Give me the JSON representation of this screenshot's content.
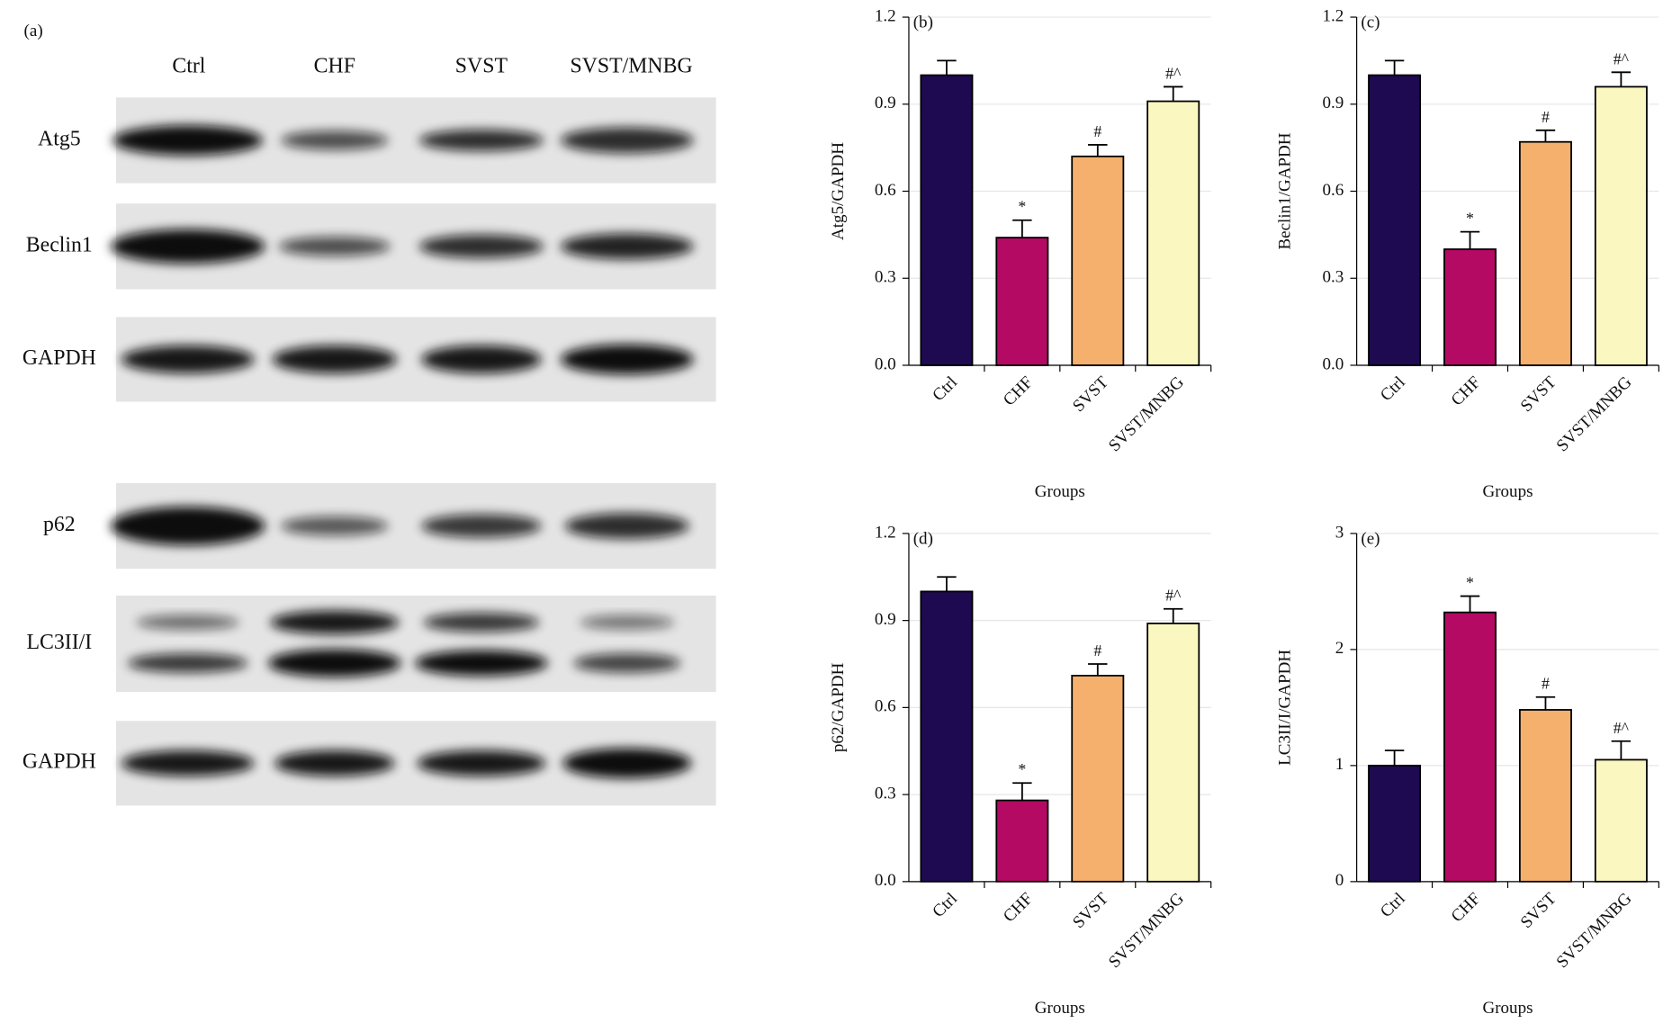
{
  "blot": {
    "label": "(a)",
    "lanes": [
      "Ctrl",
      "CHF",
      "SVST",
      "SVST/MNBG"
    ],
    "rows": [
      "Atg5",
      "Beclin1",
      "GAPDH",
      "p62",
      "LC3II/I",
      "GAPDH"
    ]
  },
  "chart_data": [
    {
      "type": "bar",
      "title": "(b)",
      "ylabel": "Atg5/GAPDH",
      "xlabel": "Groups",
      "categories": [
        "Ctrl",
        "CHF",
        "SVST",
        "SVST/MNBG"
      ],
      "values": [
        1.0,
        0.44,
        0.72,
        0.91
      ],
      "errors": [
        0.05,
        0.06,
        0.04,
        0.05
      ],
      "annotations": [
        null,
        "*",
        "#",
        "#^"
      ],
      "colors": [
        "#1e0a50",
        "#b40a64",
        "#f4b06c",
        "#fbf7c0"
      ],
      "ylim": [
        0,
        1.2
      ],
      "yticks": [
        {
          "value": 0,
          "label": "0.0"
        },
        0.3,
        0.6,
        0.9,
        1.2
      ],
      "grid": true
    },
    {
      "type": "bar",
      "title": "(c)",
      "ylabel": "Beclin1/GAPDH",
      "xlabel": "Groups",
      "categories": [
        "Ctrl",
        "CHF",
        "SVST",
        "SVST/MNBG"
      ],
      "values": [
        1.0,
        0.4,
        0.77,
        0.96
      ],
      "errors": [
        0.05,
        0.06,
        0.04,
        0.05
      ],
      "annotations": [
        null,
        "*",
        "#",
        "#^"
      ],
      "colors": [
        "#1e0a50",
        "#b40a64",
        "#f4b06c",
        "#fbf7c0"
      ],
      "ylim": [
        0,
        1.2
      ],
      "yticks": [
        {
          "value": 0,
          "label": "0.0"
        },
        0.3,
        0.6,
        0.9,
        1.2
      ],
      "grid": true
    },
    {
      "type": "bar",
      "title": "(d)",
      "ylabel": "p62/GAPDH",
      "xlabel": "Groups",
      "categories": [
        "Ctrl",
        "CHF",
        "SVST",
        "SVST/MNBG"
      ],
      "values": [
        1.0,
        0.28,
        0.71,
        0.89
      ],
      "errors": [
        0.05,
        0.06,
        0.04,
        0.05
      ],
      "annotations": [
        null,
        "*",
        "#",
        "#^"
      ],
      "colors": [
        "#1e0a50",
        "#b40a64",
        "#f4b06c",
        "#fbf7c0"
      ],
      "ylim": [
        0,
        1.2
      ],
      "yticks": [
        {
          "value": 0,
          "label": "0.0"
        },
        0.3,
        0.6,
        0.9,
        1.2
      ],
      "grid": true
    },
    {
      "type": "bar",
      "title": "(e)",
      "ylabel": "LC3II/I/GAPDH",
      "xlabel": "Groups",
      "categories": [
        "Ctrl",
        "CHF",
        "SVST",
        "SVST/MNBG"
      ],
      "values": [
        1.0,
        2.32,
        1.48,
        1.05
      ],
      "errors": [
        0.13,
        0.14,
        0.11,
        0.16
      ],
      "annotations": [
        null,
        "*",
        "#",
        "#^"
      ],
      "colors": [
        "#1e0a50",
        "#b40a64",
        "#f4b06c",
        "#fbf7c0"
      ],
      "ylim": [
        0,
        3
      ],
      "yticks": [
        0,
        1,
        2,
        3
      ],
      "grid": true
    }
  ]
}
